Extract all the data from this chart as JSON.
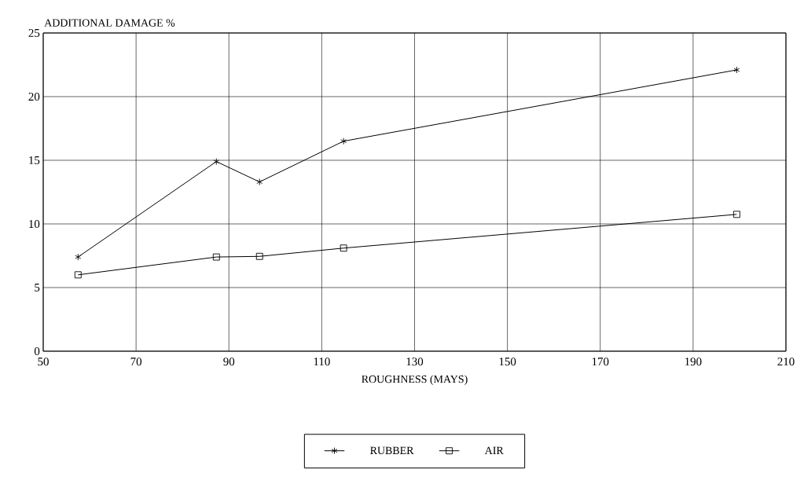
{
  "chart_data": {
    "type": "line",
    "ylabel": "ADDITIONAL DAMAGE %",
    "xlabel": "ROUGHNESS (MAYS)",
    "x": [
      57.5,
      87.3,
      96.6,
      114.7,
      199.4
    ],
    "series": [
      {
        "name": "RUBBER",
        "color": "#000000",
        "marker": "cross",
        "values": [
          7.4,
          14.9,
          13.3,
          16.5,
          22.1
        ]
      },
      {
        "name": "AIR",
        "color": "#000000",
        "marker": "square",
        "values": [
          6.0,
          7.4,
          7.45,
          8.1,
          10.75
        ]
      }
    ],
    "xlim": [
      50,
      210
    ],
    "xticks": [
      50,
      70,
      90,
      110,
      130,
      150,
      170,
      190,
      210
    ],
    "ylim": [
      0,
      25
    ],
    "yticks": [
      0,
      5,
      10,
      15,
      20,
      25
    ],
    "grid": true,
    "legend": "bottom",
    "line_style": "solid"
  }
}
